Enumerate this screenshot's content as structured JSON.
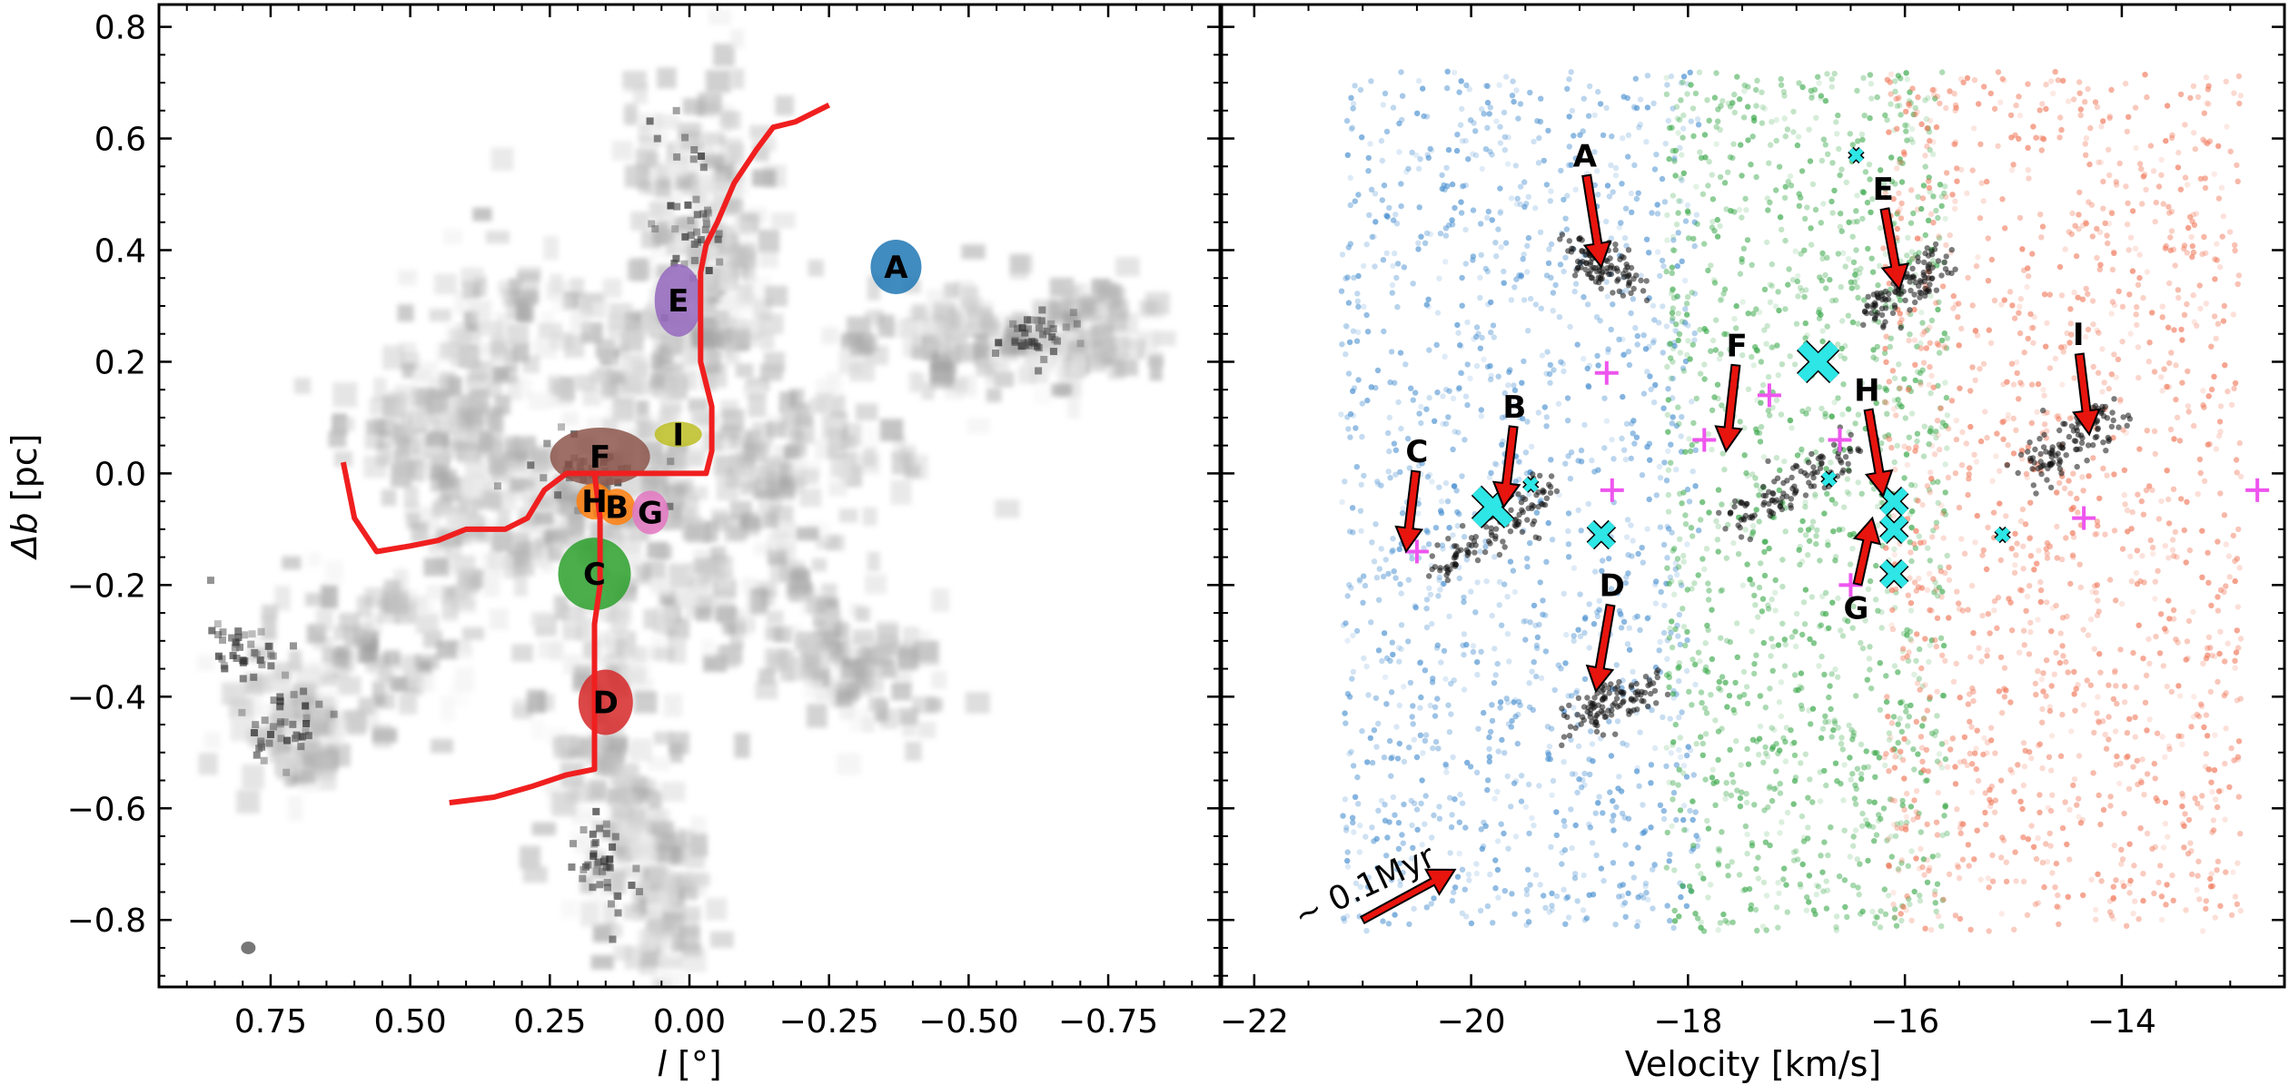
{
  "figure": {
    "arrow_note": "~ 0.1Myr",
    "colors": {
      "filament": "#f01f1f",
      "arrow": "#e8140e",
      "cross_marker": "#2ee6e6",
      "plus_marker": "#ee55ee",
      "gray_emission": "#8a8a8a",
      "blue_points": "#4a90d0",
      "green_points": "#3aa84a",
      "red_points": "#f0785a"
    }
  },
  "chart_data": [
    {
      "type": "scatter",
      "title": "",
      "xlabel_symbol": "l",
      "xlabel_unit": "[°]",
      "ylabel_symbol": "Δb",
      "ylabel_unit": "[pc]",
      "xlim": [
        0.95,
        -0.95
      ],
      "ylim": [
        -0.92,
        0.84
      ],
      "xticks": [
        0.75,
        0.5,
        0.25,
        0.0,
        -0.25,
        -0.5,
        -0.75
      ],
      "xtick_labels": [
        "0.75",
        "0.50",
        "0.25",
        "0.00",
        "−0.25",
        "−0.50",
        "−0.75"
      ],
      "yticks": [
        0.8,
        0.6,
        0.4,
        0.2,
        0.0,
        -0.2,
        -0.4,
        -0.6,
        -0.8
      ],
      "ytick_labels": [
        "0.8",
        "0.6",
        "0.4",
        "0.2",
        "0.0",
        "−0.2",
        "−0.4",
        "−0.6",
        "−0.8"
      ],
      "filament_path": [
        [
          -0.25,
          0.66
        ],
        [
          -0.19,
          0.63
        ],
        [
          -0.15,
          0.62
        ],
        [
          -0.12,
          0.58
        ],
        [
          -0.08,
          0.52
        ],
        [
          -0.05,
          0.45
        ],
        [
          -0.03,
          0.41
        ],
        [
          -0.02,
          0.36
        ],
        [
          -0.02,
          0.28
        ],
        [
          -0.02,
          0.2
        ],
        [
          -0.04,
          0.12
        ],
        [
          -0.04,
          0.04
        ],
        [
          -0.03,
          0.0
        ],
        [
          0.0,
          0.0
        ],
        [
          0.08,
          0.0
        ],
        [
          0.22,
          0.0
        ],
        [
          0.26,
          -0.03
        ],
        [
          0.29,
          -0.08
        ],
        [
          0.33,
          -0.1
        ],
        [
          0.4,
          -0.1
        ],
        [
          0.45,
          -0.12
        ],
        [
          0.5,
          -0.13
        ],
        [
          0.56,
          -0.14
        ],
        [
          0.6,
          -0.08
        ],
        [
          0.62,
          0.02
        ]
      ],
      "filament_branch": [
        [
          0.17,
          0.0
        ],
        [
          0.16,
          -0.08
        ],
        [
          0.16,
          -0.2
        ],
        [
          0.17,
          -0.27
        ],
        [
          0.17,
          -0.35
        ],
        [
          0.17,
          -0.45
        ],
        [
          0.17,
          -0.53
        ],
        [
          0.22,
          -0.54
        ],
        [
          0.28,
          -0.56
        ],
        [
          0.35,
          -0.58
        ],
        [
          0.43,
          -0.59
        ]
      ],
      "regions": [
        {
          "label": "A",
          "l": -0.37,
          "b": 0.37,
          "color": "#1f77b4"
        },
        {
          "label": "E",
          "l": 0.02,
          "b": 0.31,
          "color": "#9467bd"
        },
        {
          "label": "I",
          "l": 0.02,
          "b": 0.07,
          "color": "#bcbd22"
        },
        {
          "label": "F",
          "l": 0.16,
          "b": 0.03,
          "color": "#8c564b"
        },
        {
          "label": "H",
          "l": 0.17,
          "b": -0.05,
          "color": "#ff7f0e"
        },
        {
          "label": "B",
          "l": 0.13,
          "b": -0.06,
          "color": "#ff7f0e"
        },
        {
          "label": "G",
          "l": 0.07,
          "b": -0.07,
          "color": "#e377c2"
        },
        {
          "label": "C",
          "l": 0.17,
          "b": -0.18,
          "color": "#2ca02c"
        },
        {
          "label": "D",
          "l": 0.15,
          "b": -0.41,
          "color": "#d62728"
        }
      ],
      "beam": {
        "l": 0.79,
        "b": -0.85
      }
    },
    {
      "type": "scatter",
      "title": "",
      "xlabel": "Velocity [km/s]",
      "ylabel": "",
      "xlim": [
        -22.3,
        -12.5
      ],
      "ylim": [
        -0.92,
        0.84
      ],
      "xticks": [
        -22,
        -20,
        -18,
        -16,
        -14
      ],
      "xtick_labels": [
        "−22",
        "−20",
        "−18",
        "−16",
        "−14"
      ],
      "series": [
        {
          "name": "blue",
          "v_range": [
            -21.2,
            -17.9
          ],
          "color": "#4a90d0"
        },
        {
          "name": "green",
          "v_range": [
            -18.2,
            -15.6
          ],
          "color": "#3aa84a"
        },
        {
          "name": "red",
          "v_range": [
            -16.2,
            -12.9
          ],
          "color": "#f0785a"
        }
      ],
      "arrows": [
        {
          "label": "A",
          "label_v": -18.95,
          "label_b": 0.55,
          "v": -18.8,
          "b": 0.37
        },
        {
          "label": "E",
          "label_v": -16.2,
          "label_b": 0.49,
          "v": -16.05,
          "b": 0.33
        },
        {
          "label": "F",
          "label_v": -17.55,
          "label_b": 0.21,
          "v": -17.65,
          "b": 0.04
        },
        {
          "label": "I",
          "label_v": -14.4,
          "label_b": 0.23,
          "v": -14.3,
          "b": 0.07
        },
        {
          "label": "H",
          "label_v": -16.35,
          "label_b": 0.13,
          "v": -16.2,
          "b": -0.04
        },
        {
          "label": "B",
          "label_v": -19.6,
          "label_b": 0.1,
          "v": -19.7,
          "b": -0.06
        },
        {
          "label": "C",
          "label_v": -20.5,
          "label_b": 0.02,
          "v": -20.6,
          "b": -0.14
        },
        {
          "label": "D",
          "label_v": -18.7,
          "label_b": -0.22,
          "v": -18.85,
          "b": -0.39
        },
        {
          "label": "G",
          "label_v": -16.45,
          "label_b": -0.26,
          "v": -16.3,
          "b": -0.08
        }
      ],
      "crosses": [
        {
          "v": -16.8,
          "b": 0.2,
          "size": "large"
        },
        {
          "v": -19.8,
          "b": -0.06,
          "size": "large"
        },
        {
          "v": -16.1,
          "b": -0.05,
          "size": "medium"
        },
        {
          "v": -16.1,
          "b": -0.1,
          "size": "medium"
        },
        {
          "v": -16.1,
          "b": -0.18,
          "size": "medium"
        },
        {
          "v": -18.8,
          "b": -0.11,
          "size": "medium"
        },
        {
          "v": -16.7,
          "b": -0.01,
          "size": "small"
        },
        {
          "v": -19.45,
          "b": -0.02,
          "size": "small"
        },
        {
          "v": -16.45,
          "b": 0.57,
          "size": "small"
        },
        {
          "v": -15.1,
          "b": -0.11,
          "size": "small"
        }
      ],
      "plus_markers": [
        {
          "v": -18.75,
          "b": 0.18
        },
        {
          "v": -17.85,
          "b": 0.06
        },
        {
          "v": -16.6,
          "b": 0.06
        },
        {
          "v": -16.5,
          "b": -0.2
        },
        {
          "v": -20.5,
          "b": -0.14
        },
        {
          "v": -14.35,
          "b": -0.08
        },
        {
          "v": -12.75,
          "b": -0.03
        },
        {
          "v": -18.7,
          "b": -0.03
        },
        {
          "v": -17.25,
          "b": 0.14
        }
      ],
      "vel_arrow": {
        "v0": -21.0,
        "b0": -0.8,
        "v1": -20.15,
        "b1": -0.71
      }
    }
  ]
}
